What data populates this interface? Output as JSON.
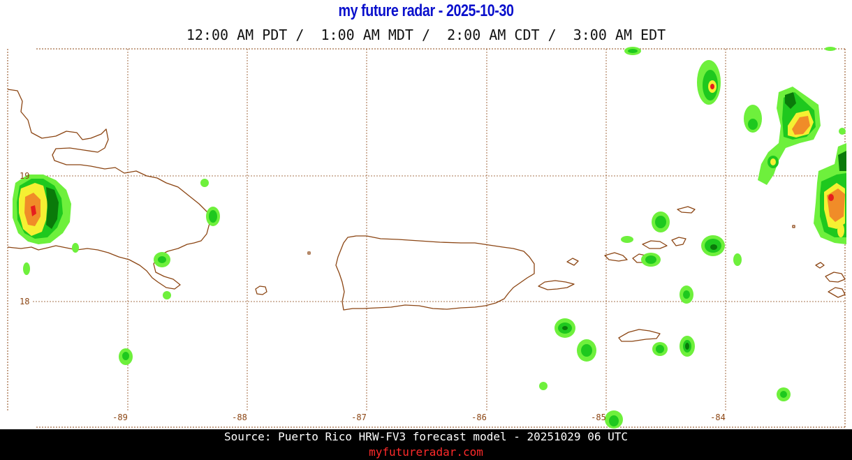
{
  "header": {
    "title": "my future radar - 2025-10-30",
    "time_zones": "12:00 AM PDT /  1:00 AM MDT /  2:00 AM CDT /  3:00 AM EDT"
  },
  "map": {
    "region": "Puerto Rico",
    "longitude_labels": [
      "-89",
      "-88",
      "-87",
      "-86",
      "-85",
      "-84"
    ],
    "latitude_labels": [
      "19",
      "18"
    ],
    "coastline_color": "#8b4513",
    "grid_color": "#8b4513",
    "radar_colors": {
      "light_green": "#6ef03c",
      "green": "#1ec81e",
      "dark_green": "#0a7a0a",
      "yellow": "#f5f032",
      "orange": "#f08c28",
      "red": "#e61e1e"
    }
  },
  "footer": {
    "source": "Source: Puerto Rico HRW-FV3 forecast model - 20251029 06 UTC",
    "site": "myfutureradar.com"
  }
}
